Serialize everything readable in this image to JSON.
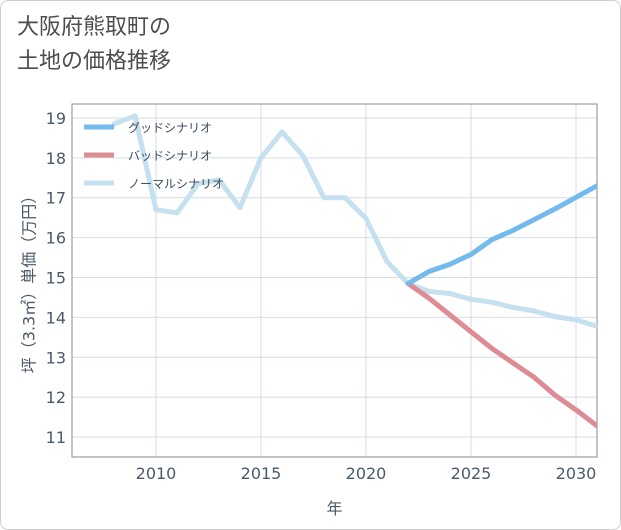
{
  "title_lines": [
    "大阪府熊取町の",
    "土地の価格推移"
  ],
  "chart_data": {
    "type": "line",
    "xlabel": "年",
    "ylabel": "坪（3.3㎡）単価（万円）",
    "xlim": [
      2006,
      2031
    ],
    "ylim": [
      10.5,
      19.35
    ],
    "x_ticks": [
      2010,
      2015,
      2020,
      2025,
      2030
    ],
    "y_ticks": [
      11,
      12,
      13,
      14,
      15,
      16,
      17,
      18,
      19
    ],
    "grid": true,
    "legend_position": "top-left",
    "series": [
      {
        "name": "グッドシナリオ",
        "color": "#74baec",
        "x": [
          2022,
          2023,
          2024,
          2025,
          2026,
          2027,
          2028,
          2029,
          2030,
          2031
        ],
        "y": [
          14.85,
          15.15,
          15.33,
          15.58,
          15.95,
          16.18,
          16.45,
          16.72,
          17.01,
          17.3
        ]
      },
      {
        "name": "バッドシナリオ",
        "color": "#dd8c94",
        "x": [
          2022,
          2023,
          2024,
          2025,
          2026,
          2027,
          2028,
          2029,
          2030,
          2031
        ],
        "y": [
          14.85,
          14.48,
          14.06,
          13.64,
          13.22,
          12.86,
          12.5,
          12.05,
          11.68,
          11.28
        ]
      },
      {
        "name": "ノーマルシナリオ",
        "color": "#c5e0ef",
        "x": [
          2008,
          2009,
          2010,
          2011,
          2012,
          2013,
          2014,
          2015,
          2016,
          2017,
          2018,
          2019,
          2020,
          2021,
          2022,
          2023,
          2024,
          2025,
          2026,
          2027,
          2028,
          2029,
          2030,
          2031
        ],
        "y": [
          18.85,
          19.05,
          16.7,
          16.62,
          17.35,
          17.45,
          16.75,
          18.0,
          18.65,
          18.05,
          17.0,
          17.0,
          16.48,
          15.4,
          14.85,
          14.65,
          14.6,
          14.45,
          14.38,
          14.25,
          14.16,
          14.02,
          13.94,
          13.78
        ]
      }
    ]
  }
}
